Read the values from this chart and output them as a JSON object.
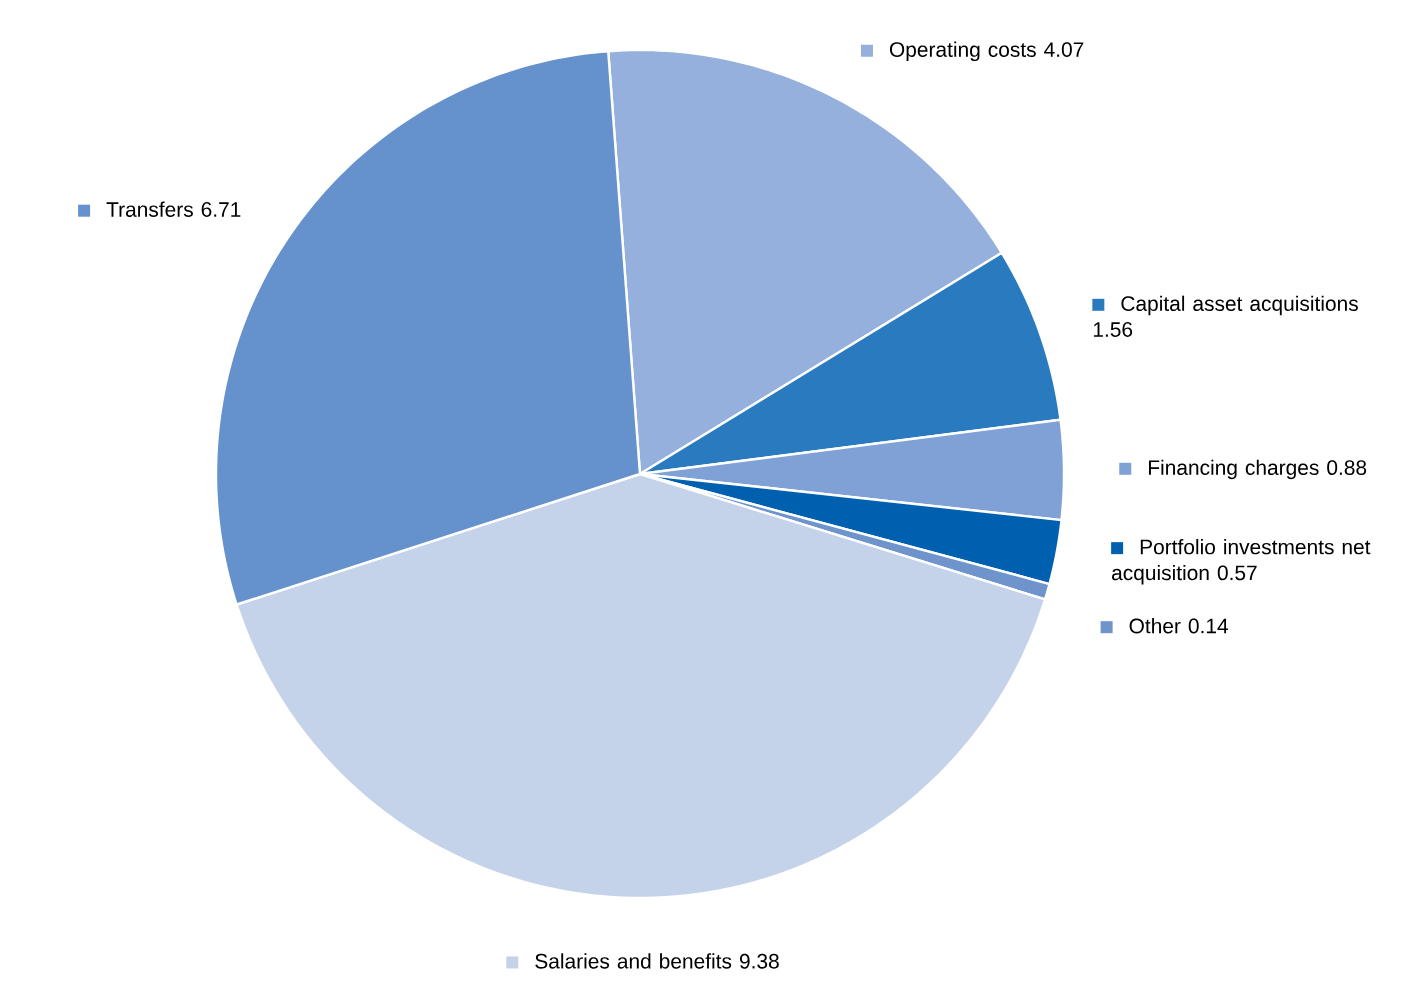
{
  "chart_data": {
    "type": "pie",
    "categories": [
      "Operating costs",
      "Capital asset acquisitions",
      "Financing charges",
      "Portfolio investments net acquisition",
      "Other",
      "Salaries and benefits",
      "Transfers"
    ],
    "values": [
      4.07,
      1.56,
      0.88,
      0.57,
      0.14,
      9.38,
      6.71
    ],
    "colors": [
      "#95b0dc",
      "#2a7abf",
      "#7fa1d6",
      "#0060b0",
      "#6f94cc",
      "#c5d3ea",
      "#6592cc"
    ],
    "data_labels": true,
    "legend": "right"
  }
}
